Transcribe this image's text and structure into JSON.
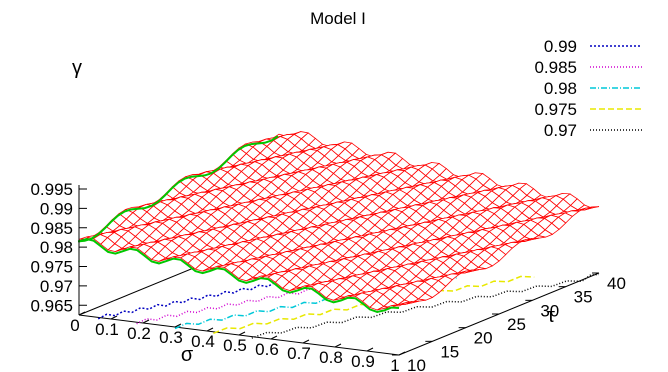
{
  "chart_data": {
    "type": "surface",
    "title": "Model I",
    "zlabel": "γ",
    "xlabel": "σ",
    "ylabel": "τ",
    "x_ticks": [
      "0",
      "0.1",
      "0.2",
      "0.3",
      "0.4",
      "0.5",
      "0.6",
      "0.7",
      "0.8",
      "0.9",
      "1"
    ],
    "y_ticks": [
      "10",
      "15",
      "20",
      "25",
      "30",
      "35",
      "40"
    ],
    "z_ticks": [
      "0.965",
      "0.97",
      "0.975",
      "0.98",
      "0.985",
      "0.99",
      "0.995"
    ],
    "xlim": [
      0,
      1
    ],
    "ylim": [
      10,
      40
    ],
    "zlim": [
      0.963,
      0.995
    ],
    "surface_color": "#ff0000",
    "surface_edge_color": "#00c800",
    "surface": {
      "sigma_range": [
        0,
        1
      ],
      "tau_range": [
        10,
        40
      ],
      "gamma_corners": {
        "sigma0_tau10": 0.9825,
        "sigma1_tau10": 0.9745,
        "sigma0_tau40": 0.9895,
        "sigma1_tau40": 0.9805
      }
    },
    "contours": [
      {
        "name": "0.99",
        "color": "#0000c0",
        "dash": "2,2"
      },
      {
        "name": "0.985",
        "color": "#d000d0",
        "dash": "1,2"
      },
      {
        "name": "0.98",
        "color": "#00c8d8",
        "dash": "6,2,1,2"
      },
      {
        "name": "0.975",
        "color": "#e8e800",
        "dash": "6,3"
      },
      {
        "name": "0.97",
        "color": "#000000",
        "dash": "1,2"
      }
    ]
  }
}
